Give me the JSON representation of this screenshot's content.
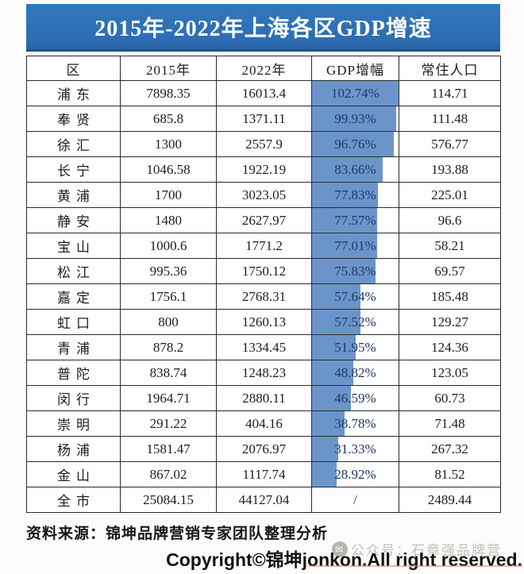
{
  "title": "2015年-2022年上海各区GDP增速",
  "source_note": "资料来源：锦坤品牌营销专家团队整理分析",
  "copyright": "Copyright©锦坤jonkon.All right reserved.",
  "watermark": {
    "icon": "wechat-icon",
    "icon_glyph": "✉",
    "text": "公众号：石章强品牌营"
  },
  "colors": {
    "banner_blue": "#2d6db3",
    "bar_blue": "#6b95ca",
    "bar_text_navy": "#1f3864",
    "border_black": "#2b2b2b"
  },
  "chart_data": {
    "type": "table",
    "title": "2015年-2022年上海各区GDP增速",
    "columns": [
      "区",
      "2015年",
      "2022年",
      "GDP增幅",
      "常住人口"
    ],
    "bar_column": "GDP增幅",
    "bar_style": "left-anchored data bar, fill proportional to growth",
    "bar_max": 102.74,
    "rows": [
      {
        "district": "浦东",
        "gdp_2015": "7898.35",
        "gdp_2022": "16013.4",
        "growth": "102.74%",
        "growth_value": 102.74,
        "population": "114.71"
      },
      {
        "district": "奉贤",
        "gdp_2015": "685.8",
        "gdp_2022": "1371.11",
        "growth": "99.93%",
        "growth_value": 99.93,
        "population": "111.48"
      },
      {
        "district": "徐汇",
        "gdp_2015": "1300",
        "gdp_2022": "2557.9",
        "growth": "96.76%",
        "growth_value": 96.76,
        "population": "576.77"
      },
      {
        "district": "长宁",
        "gdp_2015": "1046.58",
        "gdp_2022": "1922.19",
        "growth": "83.66%",
        "growth_value": 83.66,
        "population": "193.88"
      },
      {
        "district": "黄浦",
        "gdp_2015": "1700",
        "gdp_2022": "3023.05",
        "growth": "77.83%",
        "growth_value": 77.83,
        "population": "225.01"
      },
      {
        "district": "静安",
        "gdp_2015": "1480",
        "gdp_2022": "2627.97",
        "growth": "77.57%",
        "growth_value": 77.57,
        "population": "96.6"
      },
      {
        "district": "宝山",
        "gdp_2015": "1000.6",
        "gdp_2022": "1771.2",
        "growth": "77.01%",
        "growth_value": 77.01,
        "population": "58.21"
      },
      {
        "district": "松江",
        "gdp_2015": "995.36",
        "gdp_2022": "1750.12",
        "growth": "75.83%",
        "growth_value": 75.83,
        "population": "69.57"
      },
      {
        "district": "嘉定",
        "gdp_2015": "1756.1",
        "gdp_2022": "2768.31",
        "growth": "57.64%",
        "growth_value": 57.64,
        "population": "185.48"
      },
      {
        "district": "虹口",
        "gdp_2015": "800",
        "gdp_2022": "1260.13",
        "growth": "57.52%",
        "growth_value": 57.52,
        "population": "129.27"
      },
      {
        "district": "青浦",
        "gdp_2015": "878.2",
        "gdp_2022": "1334.45",
        "growth": "51.95%",
        "growth_value": 51.95,
        "population": "124.36"
      },
      {
        "district": "普陀",
        "gdp_2015": "838.74",
        "gdp_2022": "1248.23",
        "growth": "48.82%",
        "growth_value": 48.82,
        "population": "123.05"
      },
      {
        "district": "闵行",
        "gdp_2015": "1964.71",
        "gdp_2022": "2880.11",
        "growth": "46.59%",
        "growth_value": 46.59,
        "population": "60.73"
      },
      {
        "district": "崇明",
        "gdp_2015": "291.22",
        "gdp_2022": "404.16",
        "growth": "38.78%",
        "growth_value": 38.78,
        "population": "71.48"
      },
      {
        "district": "杨浦",
        "gdp_2015": "1581.47",
        "gdp_2022": "2076.97",
        "growth": "31.33%",
        "growth_value": 31.33,
        "population": "267.32"
      },
      {
        "district": "金山",
        "gdp_2015": "867.02",
        "gdp_2022": "1117.74",
        "growth": "28.92%",
        "growth_value": 28.92,
        "population": "81.52"
      },
      {
        "district": "全市",
        "gdp_2015": "25084.15",
        "gdp_2022": "44127.04",
        "growth": "/",
        "growth_value": null,
        "population": "2489.44"
      }
    ]
  }
}
